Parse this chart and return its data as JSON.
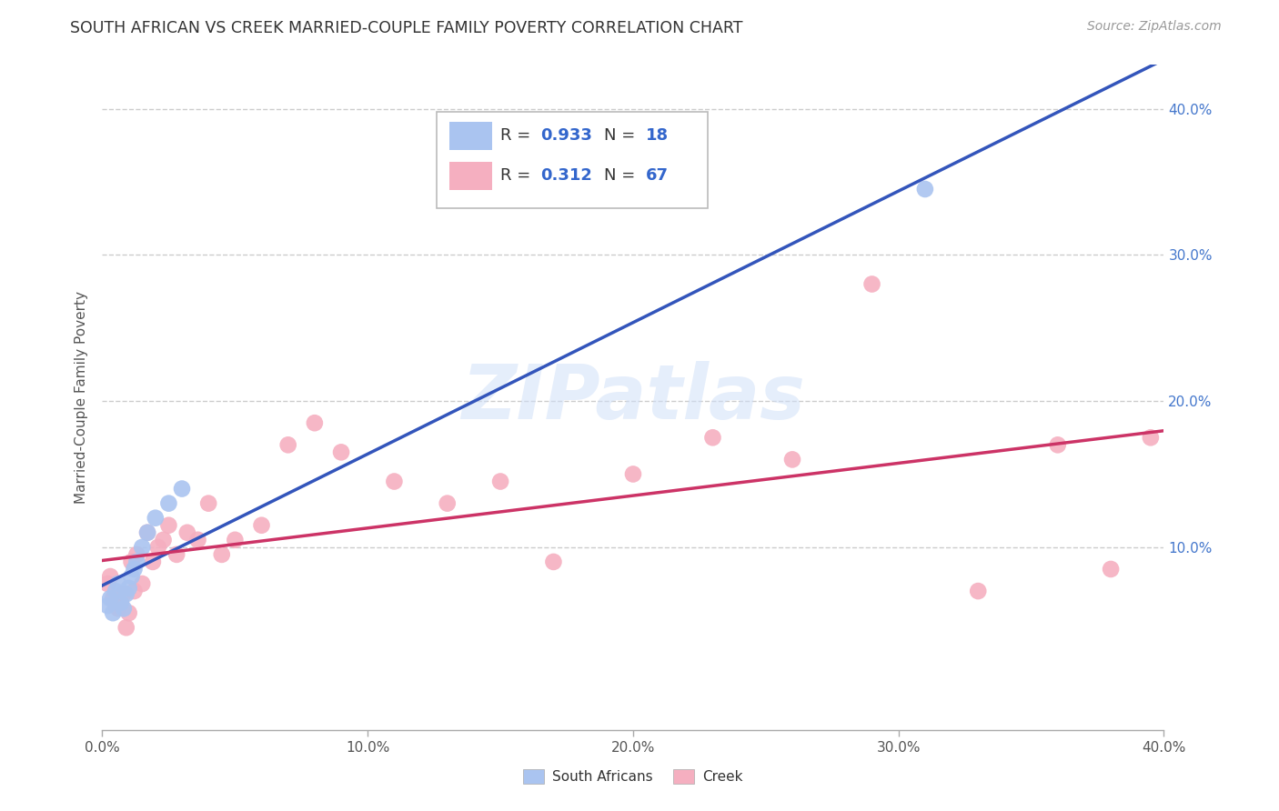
{
  "title": "SOUTH AFRICAN VS CREEK MARRIED-COUPLE FAMILY POVERTY CORRELATION CHART",
  "source": "Source: ZipAtlas.com",
  "ylabel": "Married-Couple Family Poverty",
  "xlim": [
    0.0,
    0.4
  ],
  "ylim": [
    -0.025,
    0.43
  ],
  "xticks": [
    0.0,
    0.1,
    0.2,
    0.3,
    0.4
  ],
  "yticks": [
    0.0,
    0.1,
    0.2,
    0.3,
    0.4
  ],
  "xticklabels": [
    "0.0%",
    "10.0%",
    "20.0%",
    "30.0%",
    "40.0%"
  ],
  "yticklabels_right": [
    "",
    "10.0%",
    "20.0%",
    "30.0%",
    "40.0%"
  ],
  "grid_color": "#cccccc",
  "background_color": "#ffffff",
  "south_african_color": "#aac4f0",
  "creek_color": "#f5afc0",
  "blue_line_color": "#3355bb",
  "pink_line_color": "#cc3366",
  "south_africans_label": "South Africans",
  "creek_label": "Creek",
  "south_african_x": [
    0.002,
    0.003,
    0.004,
    0.005,
    0.006,
    0.007,
    0.008,
    0.009,
    0.01,
    0.011,
    0.012,
    0.013,
    0.015,
    0.017,
    0.02,
    0.025,
    0.03,
    0.31
  ],
  "south_african_y": [
    0.06,
    0.065,
    0.055,
    0.07,
    0.075,
    0.062,
    0.058,
    0.068,
    0.072,
    0.08,
    0.085,
    0.09,
    0.1,
    0.11,
    0.12,
    0.13,
    0.14,
    0.345
  ],
  "creek_x": [
    0.002,
    0.003,
    0.004,
    0.005,
    0.006,
    0.007,
    0.008,
    0.009,
    0.01,
    0.011,
    0.012,
    0.013,
    0.015,
    0.017,
    0.019,
    0.021,
    0.023,
    0.025,
    0.028,
    0.032,
    0.036,
    0.04,
    0.045,
    0.05,
    0.06,
    0.07,
    0.08,
    0.09,
    0.11,
    0.13,
    0.15,
    0.17,
    0.2,
    0.23,
    0.26,
    0.29,
    0.33,
    0.36,
    0.38,
    0.395
  ],
  "creek_y": [
    0.075,
    0.08,
    0.065,
    0.06,
    0.058,
    0.062,
    0.068,
    0.045,
    0.055,
    0.09,
    0.07,
    0.095,
    0.075,
    0.11,
    0.09,
    0.1,
    0.105,
    0.115,
    0.095,
    0.11,
    0.105,
    0.13,
    0.095,
    0.105,
    0.115,
    0.17,
    0.185,
    0.165,
    0.145,
    0.13,
    0.145,
    0.09,
    0.15,
    0.175,
    0.16,
    0.28,
    0.07,
    0.17,
    0.085,
    0.175
  ]
}
